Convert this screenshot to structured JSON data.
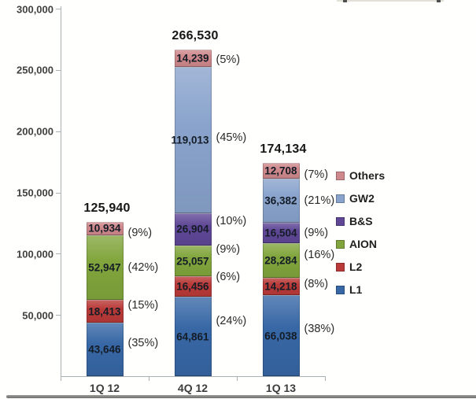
{
  "chart_data": {
    "type": "bar",
    "stacked": true,
    "categories": [
      "1Q 12",
      "4Q 12",
      "1Q 13"
    ],
    "series": [
      {
        "name": "L1",
        "color": "#3767A5",
        "values": [
          43646,
          64861,
          66038
        ],
        "value_labels": [
          "43,646",
          "64,861",
          "66,038"
        ],
        "pct_labels": [
          "(35%)",
          "(24%)",
          "(38%)"
        ]
      },
      {
        "name": "L2",
        "color": "#B93A38",
        "values": [
          18413,
          16456,
          14218
        ],
        "value_labels": [
          "18,413",
          "16,456",
          "14,218"
        ],
        "pct_labels": [
          "(15%)",
          "(6%)",
          "(8%)"
        ]
      },
      {
        "name": "AION",
        "color": "#81A53C",
        "values": [
          52947,
          25057,
          28284
        ],
        "value_labels": [
          "52,947",
          "25,057",
          "28,284"
        ],
        "pct_labels": [
          "(42%)",
          "(9%)",
          "(16%)"
        ]
      },
      {
        "name": "B&S",
        "color": "#5F4796",
        "values": [
          0,
          26904,
          16504
        ],
        "value_labels": [
          "",
          "26,904",
          "16,504"
        ],
        "pct_labels": [
          "",
          "(10%)",
          "(9%)"
        ]
      },
      {
        "name": "GW2",
        "color": "#89A3CC",
        "values": [
          0,
          119013,
          36382
        ],
        "value_labels": [
          "",
          "119,013",
          "36,382"
        ],
        "pct_labels": [
          "",
          "(45%)",
          "(21%)"
        ]
      },
      {
        "name": "Others",
        "color": "#CF898C",
        "values": [
          10934,
          14239,
          12708
        ],
        "value_labels": [
          "10,934",
          "14,239",
          "12,708"
        ],
        "pct_labels": [
          "(9%)",
          "(5%)",
          "(7%)"
        ]
      }
    ],
    "totals": {
      "values": [
        125940,
        266530,
        174134
      ],
      "labels": [
        "125,940",
        "266,530",
        "174,134"
      ]
    },
    "y_axis": {
      "min": 0,
      "max": 300000,
      "tick_step": 50000,
      "tick_labels_desc": [
        "300,000",
        "250,000",
        "200,000",
        "150,000",
        "100,000",
        "50,000"
      ]
    },
    "legend": {
      "position": "right",
      "items": [
        "Others",
        "GW2",
        "B&S",
        "AION",
        "L2",
        "L1"
      ]
    },
    "layout_hints": {
      "grid": false,
      "value_labels_inside_right": true,
      "pct_labels_outside_right": true,
      "pct_dy": [
        [
          -8,
          -20,
          -9
        ],
        [
          -8,
          -12,
          -3
        ],
        [
          0,
          -15,
          -7
        ],
        [
          0,
          -10,
          0
        ],
        [
          0,
          -3,
          0
        ],
        [
          6,
          2,
          5
        ]
      ]
    }
  }
}
